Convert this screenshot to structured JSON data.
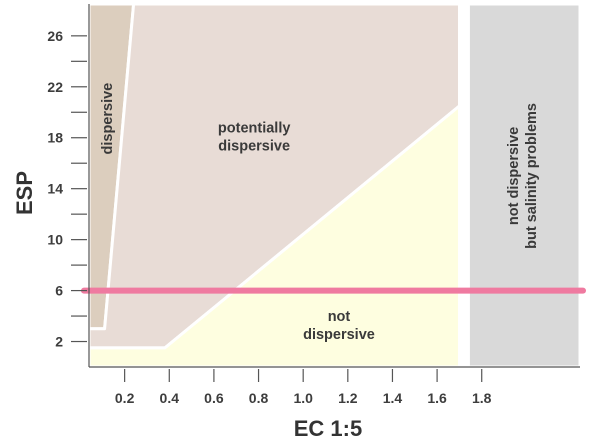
{
  "chart_data": {
    "type": "area",
    "xlabel": "EC 1:5",
    "ylabel": "ESP",
    "xlim": [
      0,
      2.2
    ],
    "ylim": [
      0,
      28.5
    ],
    "x_ticks": [
      0.2,
      0.4,
      0.6,
      0.8,
      1.0,
      1.2,
      1.4,
      1.6,
      1.8
    ],
    "x_tick_labels": [
      "0.2",
      "0.4",
      "0.6",
      "0.8",
      "1.0",
      "1.2",
      "1.4",
      "1.6",
      "1.8"
    ],
    "y_ticks": [
      2,
      4,
      6,
      8,
      10,
      12,
      14,
      16,
      18,
      20,
      22,
      24,
      26
    ],
    "y_tick_labels": [
      "2",
      "6",
      "10",
      "14",
      "18",
      "22",
      "26"
    ],
    "y_labeled_ticks": [
      2,
      6,
      10,
      14,
      18,
      22,
      26
    ],
    "grid": false,
    "regions": [
      {
        "label_lines": [
          "dispersive"
        ],
        "color": "#dccebe",
        "boundary": [
          [
            0.0,
            3.0
          ],
          [
            0.07,
            3.0
          ],
          [
            0.2,
            28.5
          ],
          [
            0.0,
            28.5
          ]
        ],
        "label_at": [
          0.08,
          19.5
        ],
        "label_rotated": true
      },
      {
        "label_lines": [
          "potentially",
          "dispersive"
        ],
        "color": "#e8dcd6",
        "boundary": [
          [
            0.0,
            1.5
          ],
          [
            0.34,
            1.5
          ],
          [
            1.66,
            20.5
          ],
          [
            1.66,
            28.5
          ],
          [
            0.2,
            28.5
          ],
          [
            0.07,
            3.0
          ],
          [
            0.0,
            3.0
          ]
        ],
        "label_at": [
          0.74,
          18.1
        ],
        "label_rotated": false
      },
      {
        "label_lines": [
          "not",
          "dispersive"
        ],
        "color": "#fefee0",
        "boundary": [
          [
            0.0,
            0.0
          ],
          [
            1.66,
            0.0
          ],
          [
            1.66,
            20.5
          ],
          [
            0.34,
            1.5
          ],
          [
            0.0,
            1.5
          ]
        ],
        "label_at": [
          1.12,
          3.3
        ],
        "label_rotated": false
      },
      {
        "label_lines": [
          "not dispersive",
          "but salinity problems"
        ],
        "color": "#d9d9d9",
        "boundary": [
          [
            1.7,
            0.0
          ],
          [
            2.2,
            0.0
          ],
          [
            2.2,
            28.5
          ],
          [
            1.7,
            28.5
          ]
        ],
        "label_at": [
          1.94,
          15.0
        ],
        "label_rotated": true
      }
    ],
    "reference_line": {
      "y": 6,
      "color": "#ef7aa0"
    }
  }
}
